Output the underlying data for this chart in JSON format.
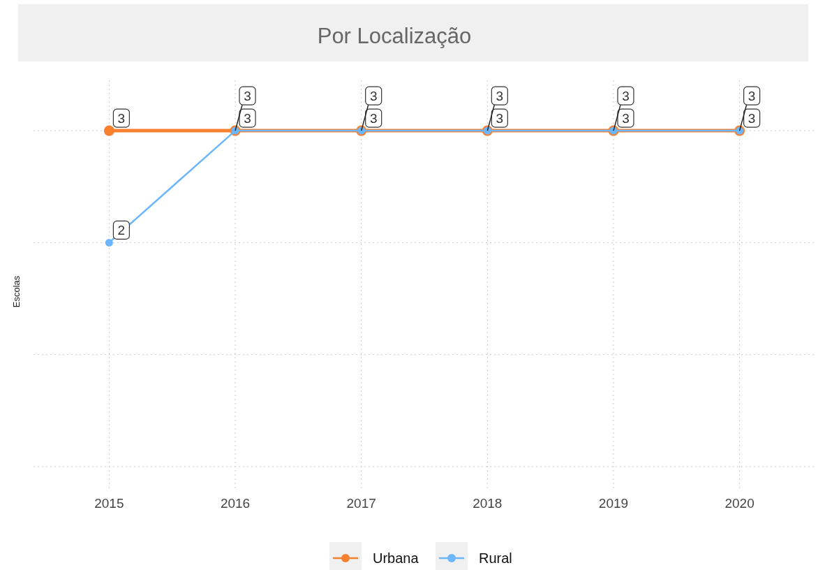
{
  "chart_data": {
    "type": "line",
    "title": "Por Localização",
    "ylabel": "Escolas",
    "x": [
      2015,
      2016,
      2017,
      2018,
      2019,
      2020
    ],
    "series": [
      {
        "name": "Urbana",
        "color": "#f8812f",
        "values": [
          3,
          3,
          3,
          3,
          3,
          3
        ]
      },
      {
        "name": "Rural",
        "color": "#6cb6fb",
        "values": [
          2,
          3,
          3,
          3,
          3,
          3
        ]
      }
    ],
    "xlim": [
      2014.4,
      2020.6
    ],
    "xticks": [
      2015,
      2016,
      2017,
      2018,
      2019,
      2020
    ],
    "ylim": [
      -0.2,
      3.45
    ],
    "yticks": [
      {
        "value": 0,
        "label": null
      },
      {
        "value": 1,
        "label": null
      },
      {
        "value": 2,
        "label": null
      },
      {
        "value": 3,
        "label": null
      }
    ],
    "tick_labels": "x",
    "grid": true,
    "legend": "bottom",
    "marker": "circle",
    "line_style": "solid",
    "data_labels": true
  }
}
